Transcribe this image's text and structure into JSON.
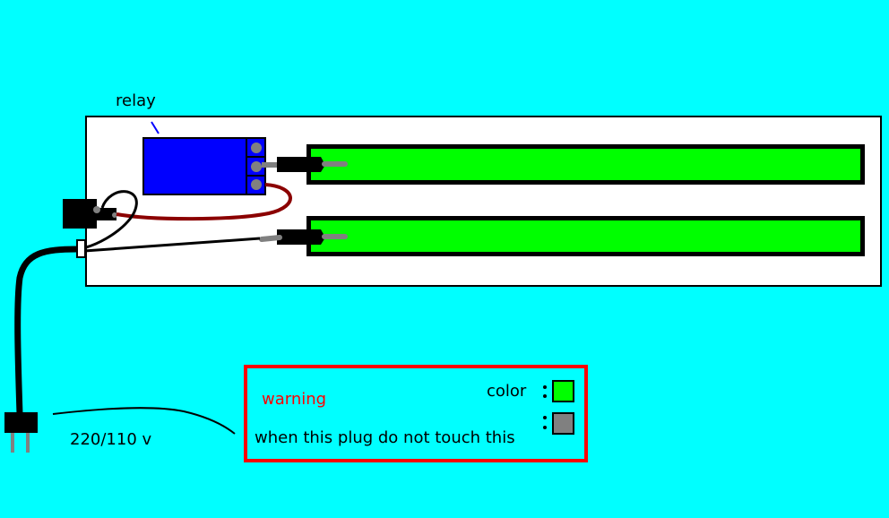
{
  "labels": {
    "relay": "relay",
    "voltage": "220/110 v"
  },
  "warning_box": {
    "title": "warning",
    "color_label": "color",
    "text": "when this plug do not touch this",
    "swatches": [
      "#00ff00",
      "#808080"
    ]
  },
  "colors": {
    "background": "#00ffff",
    "board": "#ffffff",
    "relay": "#0000ff",
    "led_strip": "#00ff00",
    "wire": "#8b0000",
    "warning_border": "#ff0000",
    "warning_text": "#ff0000"
  }
}
